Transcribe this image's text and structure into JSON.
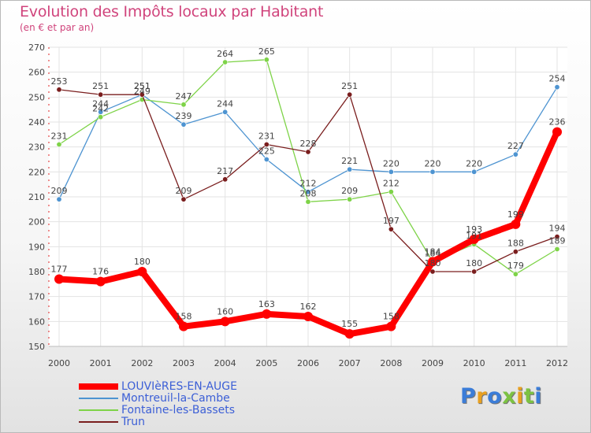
{
  "chart_data": {
    "type": "line",
    "title": "Evolution des Impôts locaux par Habitant",
    "subtitle": "(en € et par an)",
    "x": [
      "2000",
      "2001",
      "2002",
      "2003",
      "2004",
      "2005",
      "2006",
      "2007",
      "2008",
      "2009",
      "2010",
      "2011",
      "2012"
    ],
    "ylim": [
      150,
      270
    ],
    "yticks": [
      150,
      160,
      170,
      180,
      190,
      200,
      210,
      220,
      230,
      240,
      250,
      260,
      270
    ],
    "grid": true,
    "legend_position": "bottom-left",
    "series": [
      {
        "name": "LOUVIèRES-EN-AUGE",
        "color": "#ff0000",
        "values": [
          177,
          176,
          180,
          158,
          160,
          163,
          162,
          155,
          158,
          184,
          193,
          199,
          236
        ]
      },
      {
        "name": "Montreuil-la-Cambe",
        "color": "#4e94d1",
        "values": [
          209,
          244,
          251,
          239,
          244,
          225,
          212,
          221,
          220,
          220,
          220,
          227,
          254
        ]
      },
      {
        "name": "Fontaine-les-Bassets",
        "color": "#7ed348",
        "values": [
          231,
          242,
          249,
          247,
          264,
          265,
          208,
          209,
          212,
          184,
          191,
          179,
          189
        ]
      },
      {
        "name": "Trun",
        "color": "#7a1e1e",
        "values": [
          253,
          251,
          251,
          209,
          217,
          231,
          228,
          251,
          197,
          180,
          180,
          188,
          194
        ]
      }
    ]
  },
  "logo": {
    "letters": [
      {
        "ch": "P",
        "color": "#3b7dd8"
      },
      {
        "ch": "r",
        "color": "#e8a020"
      },
      {
        "ch": "o",
        "color": "#3b7dd8"
      },
      {
        "ch": "x",
        "color": "#7cc242"
      },
      {
        "ch": "i",
        "color": "#e8a020"
      },
      {
        "ch": "t",
        "color": "#7cc242"
      },
      {
        "ch": "i",
        "color": "#3b7dd8"
      }
    ]
  }
}
